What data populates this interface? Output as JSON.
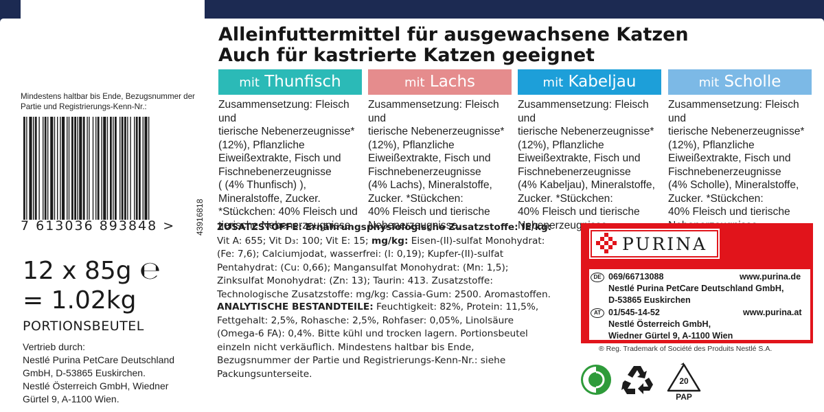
{
  "heading": {
    "line1": "Alleinfuttermittel für ausgewachsene Katzen",
    "line2": "Auch für kastrierte Katzen geeignet"
  },
  "variants": [
    {
      "prefix": "mit",
      "name": "Thunfisch",
      "color": "#2bbab7",
      "composition": [
        "Zusammensetzung: Fleisch und",
        "tierische Nebenerzeugnisse*",
        "(12%), Pflanzliche",
        "Eiweißextrakte, Fisch und",
        "Fischnebenerzeugnisse",
        " ( (4% Thunfisch) ),",
        "Mineralstoffe, Zucker.",
        "*Stückchen: 40% Fleisch und",
        "tierische Nebenerzeugnisse."
      ]
    },
    {
      "prefix": "mit",
      "name": "Lachs",
      "color": "#e58c8d",
      "composition": [
        "Zusammensetzung: Fleisch und",
        "tierische Nebenerzeugnisse*",
        "(12%), Pflanzliche",
        "Eiweißextrakte, Fisch und",
        "Fischnebenerzeugnisse",
        "(4% Lachs), Mineralstoffe,",
        "Zucker. *Stückchen:",
        "40% Fleisch und tierische",
        "Nebenerzeugnisse."
      ]
    },
    {
      "prefix": "mit",
      "name": "Kabeljau",
      "color": "#1d9fd9",
      "composition": [
        "Zusammensetzung: Fleisch und",
        "tierische Nebenerzeugnisse*",
        "(12%), Pflanzliche",
        "Eiweißextrakte, Fisch und",
        "Fischnebenerzeugnisse",
        "(4% Kabeljau), Mineralstoffe,",
        "Zucker. *Stückchen:",
        "40% Fleisch und tierische",
        "Nebenerzeugnisse."
      ]
    },
    {
      "prefix": "mit",
      "name": "Scholle",
      "color": "#7cb9e6",
      "composition": [
        "Zusammensetzung: Fleisch und",
        "tierische Nebenerzeugnisse*",
        "(12%), Pflanzliche",
        "Eiweißextrakte, Fisch und",
        "Fischnebenerzeugnisse",
        "(4% Scholle), Mineralstoffe,",
        "Zucker. *Stückchen:",
        "40% Fleisch und tierische",
        "Nebenerzeugnisse."
      ]
    }
  ],
  "additives": {
    "lines": [
      [
        "ZUSATZSTOFFE: Ernährungsphysiologische Zusatzstoffe: IE/kg:",
        ""
      ],
      [
        "Vit A: 655; Vit D₃: 100; Vit E: 15; ",
        "mg/kg:",
        " Eisen-(II)-sulfat Monohydrat:"
      ],
      [
        "(Fe: 7,6); Calciumjodat, wasserfrei: (I: 0,19); Kupfer-(II)-sulfat"
      ],
      [
        "Pentahydrat: (Cu: 0,66); Mangansulfat Monohydrat: (Mn: 1,5);"
      ],
      [
        "Zinksulfat Monohydrat: (Zn: 13); Taurin: 413. Zusatzstoffe:"
      ],
      [
        "Technologische Zusatzstoffe: mg/kg: Cassia-Gum: 2500. Aromastoffen."
      ]
    ]
  },
  "analytics": {
    "title": "ANALYTISCHE BESTANDTEILE:",
    "first": " Feuchtigkeit: 82%, Protein: 11,5%,",
    "lines": [
      "Fettgehalt: 2,5%, Rohasche: 2,5%, Rohfaser: 0,05%, Linolsäure",
      "(Omega-6 FA): 0,4%. Bitte kühl und trocken lagern. Portionsbeutel",
      "einzeln nicht verkäuflich. Mindestens haltbar bis Ende,",
      "Bezugsnummer der Partie und Registrierungs-Kenn-Nr.: siehe",
      "Packungsunterseite."
    ]
  },
  "best_before": {
    "line1": "Mindestens haltbar bis Ende, Bezugsnummer der",
    "line2": "Partie und Registrierungs-Kenn-Nr.:"
  },
  "barcode": {
    "number": "7  613036  893848  >",
    "batch": "43916818"
  },
  "weight": {
    "line1": "12 x 85g ℮",
    "line2": "= 1.02kg",
    "unit": "PORTIONSBEUTEL"
  },
  "distribution": {
    "lines": [
      "Vertrieb durch:",
      "Nestlé Purina PetCare Deutschland",
      "GmbH, D-53865 Euskirchen.",
      "Nestlé Österreich GmbH, Wiedner",
      "Gürtel 9, A-1100 Wien."
    ]
  },
  "purina": {
    "brand": "PURINA",
    "de": {
      "code": "DE",
      "phone": "069/66713088",
      "web": "www.purina.de",
      "company": "Nestlé Purina PetCare Deutschland GmbH,",
      "address": "D-53865 Euskirchen"
    },
    "at": {
      "code": "AT",
      "phone": "01/545-14-52",
      "web": "www.purina.at",
      "company": "Nestlé Österreich GmbH,",
      "address": "Wiedner Gürtel 9, A-1100 Wien"
    },
    "color": "#e1141b"
  },
  "trademark": "® Reg. Trademark of Société des Produits Nestlé S.A.",
  "recycling": {
    "code": "20",
    "material": "PAP"
  },
  "icons": [
    "green-dot-icon",
    "recycle-icon",
    "pap-recycle-icon"
  ]
}
